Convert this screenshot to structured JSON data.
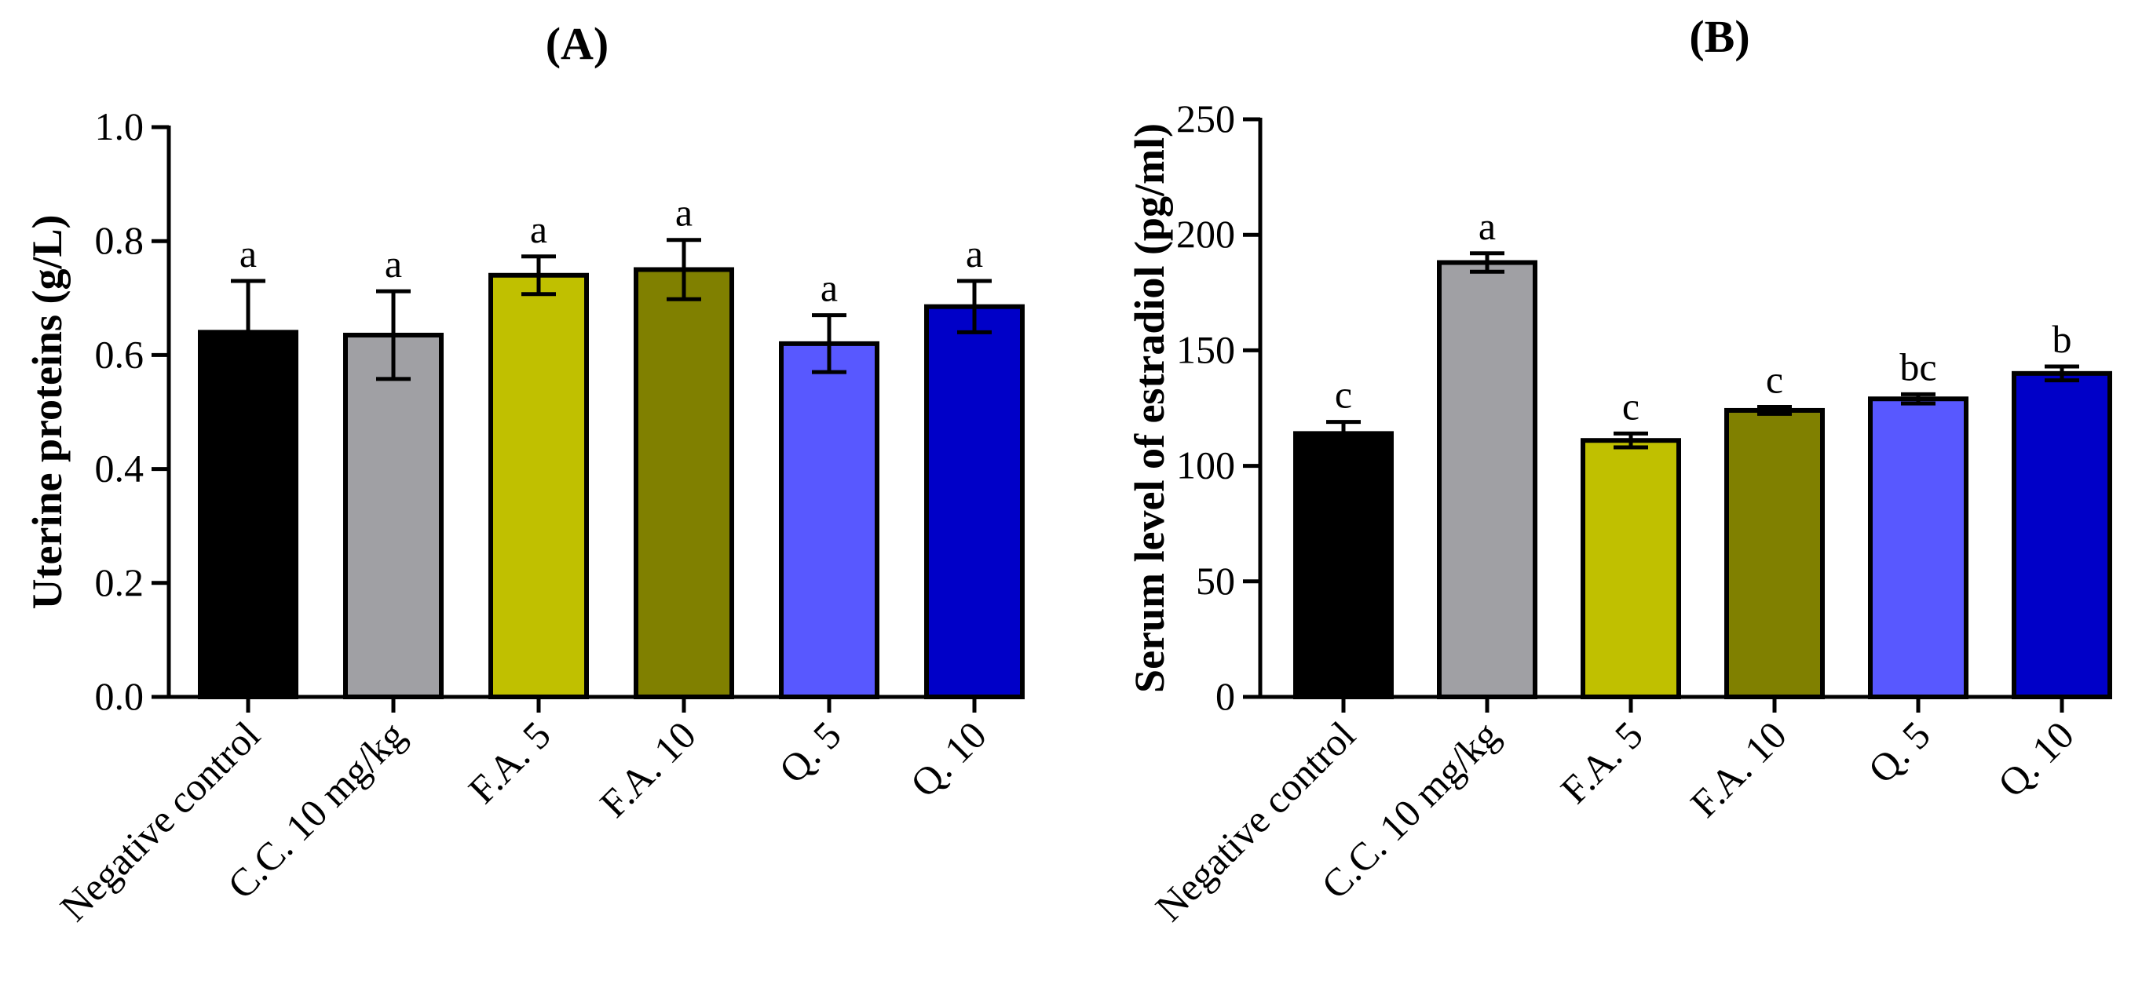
{
  "chart_data": [
    {
      "type": "bar",
      "title": "(A)",
      "xlabel": "",
      "ylabel": "Uterine proteins (g/L)",
      "ylim": [
        0,
        1.0
      ],
      "yticks": [
        0.0,
        0.2,
        0.4,
        0.6,
        0.8,
        1.0
      ],
      "ytick_labels": [
        "0.0",
        "0.2",
        "0.4",
        "0.6",
        "0.8",
        "1.0"
      ],
      "categories": [
        "Negative control",
        "C.C. 10 mg/kg",
        "F.A. 5",
        "F.A. 10",
        "Q. 5",
        "Q. 10"
      ],
      "values": [
        0.64,
        0.635,
        0.74,
        0.75,
        0.62,
        0.685
      ],
      "errors": [
        0.09,
        0.077,
        0.033,
        0.052,
        0.05,
        0.045
      ],
      "significance": [
        "a",
        "a",
        "a",
        "a",
        "a",
        "a"
      ],
      "colors": [
        "#000000",
        "#a0a0a4",
        "#c0c000",
        "#808000",
        "#5858ff",
        "#0000c8"
      ],
      "grid": false
    },
    {
      "type": "bar",
      "title": "(B)",
      "xlabel": "",
      "ylabel": "Serum level of estradiol (pg/ml)",
      "ylim": [
        0,
        250
      ],
      "yticks": [
        0,
        50,
        100,
        150,
        200,
        250
      ],
      "ytick_labels": [
        "0",
        "50",
        "100",
        "150",
        "200",
        "250"
      ],
      "categories": [
        "Negative control",
        "C.C. 10 mg/kg",
        "F.A. 5",
        "F.A. 10",
        "Q. 5",
        "Q. 10"
      ],
      "values": [
        114,
        188,
        111,
        124,
        129,
        140
      ],
      "errors": [
        5,
        4,
        3,
        1.5,
        2,
        3
      ],
      "significance": [
        "c",
        "a",
        "c",
        "c",
        "bc",
        "b"
      ],
      "colors": [
        "#000000",
        "#a0a0a4",
        "#c0c000",
        "#808000",
        "#5858ff",
        "#0000c8"
      ],
      "grid": false
    }
  ]
}
